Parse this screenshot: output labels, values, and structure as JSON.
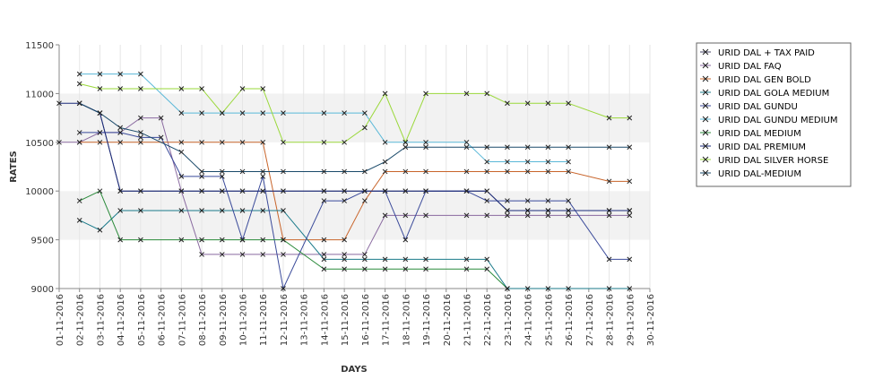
{
  "chart_data": {
    "type": "line",
    "title": "",
    "xlabel": "DAYS",
    "ylabel": "RATES",
    "ylim": [
      9000,
      11500
    ],
    "yticks": [
      9000,
      9500,
      10000,
      10500,
      11000,
      11500
    ],
    "grid": "horizontal bands",
    "legend_position": "right",
    "categories": [
      "01-11-2016",
      "02-11-2016",
      "03-11-2016",
      "04-11-2016",
      "05-11-2016",
      "06-11-2016",
      "07-11-2016",
      "08-11-2016",
      "09-11-2016",
      "10-11-2016",
      "11-11-2016",
      "12-11-2016",
      "13-11-2016",
      "14-11-2016",
      "15-11-2016",
      "16-11-2016",
      "17-11-2016",
      "18-11-2016",
      "19-11-2016",
      "20-11-2016",
      "21-11-2016",
      "22-11-2016",
      "23-11-2016",
      "24-11-2016",
      "25-11-2016",
      "26-11-2016",
      "27-11-2016",
      "28-11-2016",
      "29-11-2016",
      "30-11-2016"
    ],
    "series": [
      {
        "name": "URID DAL + TAX PAID",
        "color": "#444466",
        "values": [
          null,
          10900,
          10800,
          10000,
          10000,
          null,
          10000,
          10000,
          10000,
          10000,
          10000,
          10000,
          null,
          10000,
          10000,
          10000,
          10000,
          10000,
          10000,
          null,
          10000,
          10000,
          9800,
          9800,
          9800,
          9800,
          null,
          9800,
          9800,
          null
        ]
      },
      {
        "name": "URID DAL FAQ",
        "color": "#8a6aa0",
        "values": [
          10500,
          10500,
          10600,
          10600,
          10750,
          10750,
          10000,
          9350,
          9350,
          9350,
          9350,
          9350,
          null,
          9350,
          9350,
          9350,
          9750,
          9750,
          9750,
          null,
          9750,
          9750,
          9750,
          9750,
          9750,
          9750,
          null,
          9750,
          9750,
          null
        ]
      },
      {
        "name": "URID DAL GEN BOLD",
        "color": "#c8642a",
        "values": [
          null,
          10500,
          10500,
          10500,
          10500,
          null,
          10500,
          10500,
          10500,
          10500,
          10500,
          9500,
          null,
          9500,
          9500,
          9900,
          10200,
          10200,
          10200,
          null,
          10200,
          10200,
          10200,
          10200,
          10200,
          10200,
          null,
          10100,
          10100,
          null
        ]
      },
      {
        "name": "URID DAL GOLA MEDIUM",
        "color": "#1a7a8a",
        "values": [
          null,
          9700,
          9600,
          9800,
          9800,
          null,
          9800,
          9800,
          9800,
          9800,
          9800,
          9800,
          null,
          9300,
          9300,
          9300,
          9300,
          9300,
          9300,
          null,
          9300,
          9300,
          9000,
          9000,
          9000,
          9000,
          null,
          9000,
          9000,
          null
        ]
      },
      {
        "name": "URID DAL GUNDU",
        "color": "#3a4a9a",
        "values": [
          null,
          10600,
          10600,
          10600,
          10550,
          10550,
          10150,
          10150,
          10150,
          9500,
          10150,
          9000,
          null,
          9900,
          9900,
          10000,
          10000,
          9500,
          10000,
          null,
          10000,
          9900,
          9900,
          9900,
          9900,
          9900,
          null,
          9300,
          9300,
          null
        ]
      },
      {
        "name": "URID DAL GUNDU MEDIUM",
        "color": "#5ab8d8",
        "values": [
          null,
          11200,
          11200,
          11200,
          11200,
          null,
          10800,
          10800,
          10800,
          10800,
          10800,
          10800,
          null,
          10800,
          10800,
          10800,
          10500,
          10500,
          10500,
          null,
          10500,
          10300,
          10300,
          10300,
          10300,
          10300,
          null,
          null,
          null,
          null
        ]
      },
      {
        "name": "URID DAL MEDIUM",
        "color": "#2a8a3a",
        "values": [
          null,
          9900,
          10000,
          9500,
          9500,
          null,
          9500,
          9500,
          9500,
          9500,
          9500,
          9500,
          null,
          9200,
          9200,
          9200,
          9200,
          9200,
          9200,
          null,
          9200,
          9200,
          9000,
          null,
          null,
          null,
          null,
          null,
          null,
          null
        ]
      },
      {
        "name": "URID DAL PREMIUM",
        "color": "#1a2a7a",
        "values": [
          10900,
          10900,
          10800,
          10000,
          10000,
          null,
          10000,
          10000,
          10000,
          10000,
          10000,
          10000,
          null,
          10000,
          10000,
          10000,
          10000,
          10000,
          10000,
          null,
          10000,
          10000,
          9800,
          9800,
          9800,
          9800,
          null,
          9800,
          9800,
          null
        ]
      },
      {
        "name": "URID DAL SILVER HORSE",
        "color": "#9ad83a",
        "values": [
          null,
          11100,
          11050,
          11050,
          11050,
          null,
          11050,
          11050,
          10800,
          11050,
          11050,
          10500,
          null,
          10500,
          10500,
          10650,
          11000,
          10500,
          11000,
          null,
          11000,
          11000,
          10900,
          10900,
          10900,
          10900,
          null,
          10750,
          10750,
          null
        ]
      },
      {
        "name": "URID DAL-MEDIUM",
        "color": "#1a4a6a",
        "values": [
          null,
          10900,
          10800,
          10650,
          10600,
          null,
          10400,
          10200,
          10200,
          10200,
          10200,
          10200,
          null,
          10200,
          10200,
          10200,
          10300,
          10450,
          10450,
          null,
          10450,
          10450,
          10450,
          10450,
          10450,
          10450,
          null,
          10450,
          10450,
          null
        ]
      }
    ]
  }
}
